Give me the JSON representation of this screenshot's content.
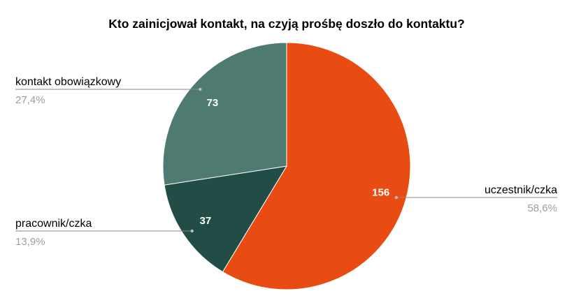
{
  "chart_data": {
    "type": "pie",
    "title": "Kto zainicjował kontakt, na czyją prośbę doszło do kontaktu?",
    "slices": [
      {
        "label": "uczestnik/czka",
        "value": 156,
        "percent_label": "58,6%",
        "color": "#e84c12"
      },
      {
        "label": "pracownik/czka",
        "value": 37,
        "percent_label": "13,9%",
        "color": "#224d47"
      },
      {
        "label": "kontakt obowiązkowy",
        "value": 73,
        "percent_label": "27,4%",
        "color": "#4e7a72"
      }
    ],
    "start_angle_deg": 0,
    "direction": "clockwise",
    "legend": "callout labels beside slices"
  }
}
